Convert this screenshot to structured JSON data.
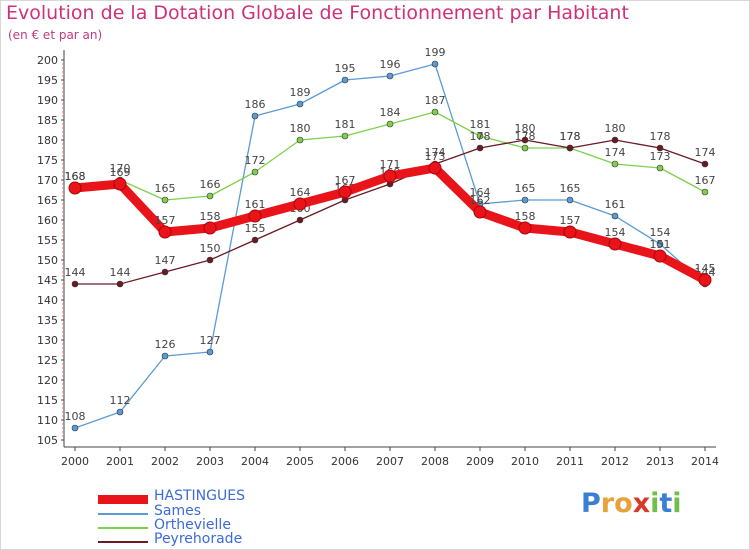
{
  "title": "Evolution de la Dotation Globale de Fonctionnement par Habitant",
  "subtitle": "(en € et par an)",
  "logo_text": "Proxiti",
  "chart_data": {
    "type": "line",
    "x": [
      "2000",
      "2001",
      "2002",
      "2003",
      "2004",
      "2005",
      "2006",
      "2007",
      "2008",
      "2009",
      "2010",
      "2011",
      "2012",
      "2013",
      "2014"
    ],
    "ylim": [
      105,
      200
    ],
    "yticks": [
      105,
      110,
      115,
      120,
      125,
      130,
      135,
      140,
      145,
      150,
      155,
      160,
      165,
      170,
      175,
      180,
      185,
      190,
      195,
      200
    ],
    "grid": false,
    "legend_position": "bottom-left",
    "series": [
      {
        "name": "HASTINGUES",
        "color": "#e8141a",
        "values": [
          168,
          169,
          157,
          158,
          161,
          164,
          167,
          171,
          173,
          162,
          158,
          157,
          154,
          151,
          145
        ]
      },
      {
        "name": "Sames",
        "color": "#5b9bd5",
        "values": [
          108,
          112,
          126,
          127,
          186,
          189,
          195,
          196,
          199,
          164,
          165,
          165,
          161,
          154,
          144
        ]
      },
      {
        "name": "Orthevielle",
        "color": "#7ed04b",
        "values": [
          168,
          170,
          165,
          166,
          172,
          180,
          181,
          184,
          187,
          181,
          178,
          178,
          174,
          173,
          167
        ]
      },
      {
        "name": "Peyrehorade",
        "color": "#6b1a24",
        "values": [
          144,
          144,
          147,
          150,
          155,
          160,
          165,
          169,
          174,
          178,
          180,
          178,
          180,
          178,
          174
        ]
      }
    ]
  }
}
